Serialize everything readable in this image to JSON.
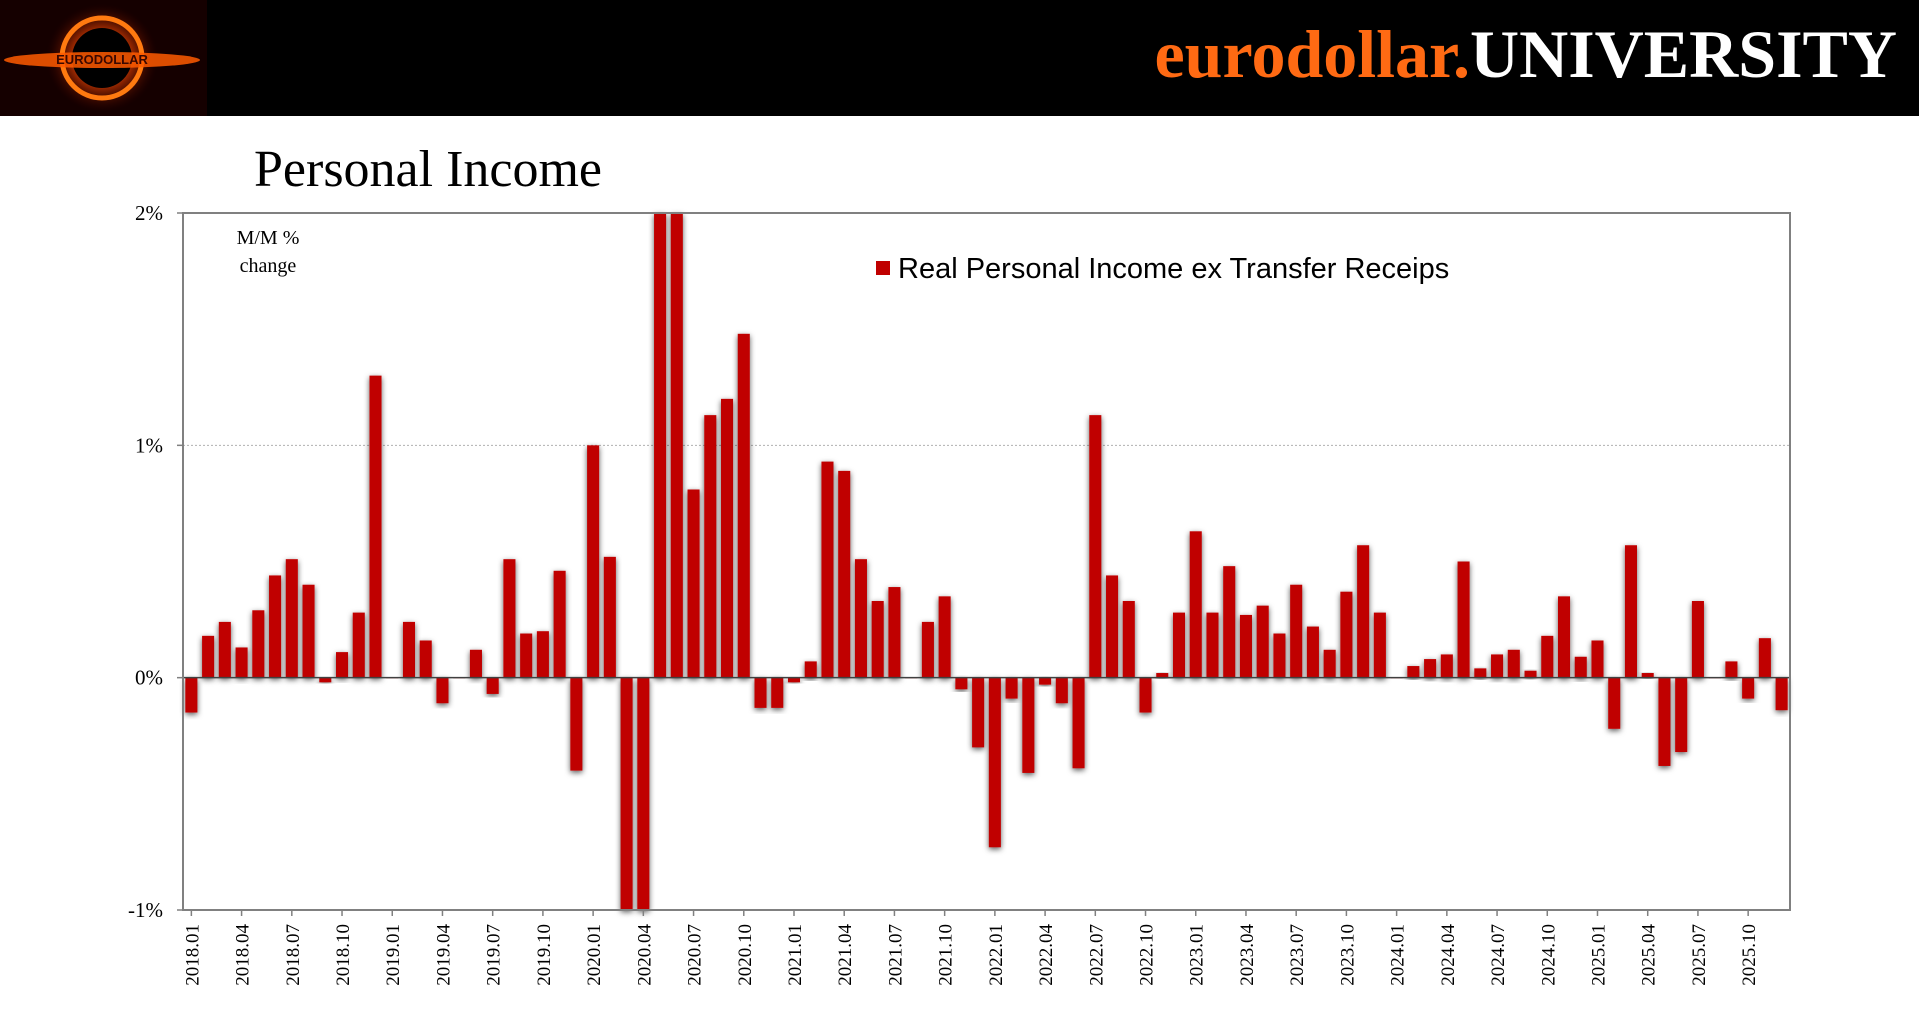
{
  "header": {
    "brand_part1": "eurodollar.",
    "brand_part2": "UNIVERSITY",
    "logo_text": "EURODOLLAR",
    "colors": {
      "background": "#000000",
      "brand_orange": "#ff6a13",
      "brand_white": "#ffffff",
      "logo_glow": "#ff5a00"
    }
  },
  "page_title": "Personal Income",
  "chart_data": {
    "type": "bar",
    "title": "Personal Income",
    "ylabel_line1": "M/M %",
    "ylabel_line2": "change",
    "ylim": [
      -1,
      2
    ],
    "yticks": [
      -1,
      0,
      1,
      2
    ],
    "ytick_labels": [
      "-1%",
      "0%",
      "1%",
      "2%"
    ],
    "grid": true,
    "legend_position": "top-center",
    "series": [
      {
        "name": "Real Personal Income ex Transfer Receips",
        "color": "#c00000",
        "values": [
          -0.15,
          0.18,
          0.24,
          0.13,
          0.29,
          0.44,
          0.51,
          0.4,
          -0.02,
          0.11,
          0.28,
          1.3,
          0.0,
          0.24,
          0.16,
          -0.11,
          0.0,
          0.12,
          -0.07,
          0.51,
          0.19,
          0.2,
          0.46,
          -0.4,
          1.0,
          0.52,
          -1.0,
          -1.0,
          2.0,
          2.0,
          0.81,
          1.13,
          1.2,
          1.48,
          -0.13,
          -0.13,
          -0.02,
          0.07,
          0.93,
          0.89,
          0.51,
          0.33,
          0.39,
          0.0,
          0.24,
          0.35,
          -0.05,
          -0.3,
          -0.73,
          -0.09,
          -0.41,
          -0.03,
          -0.11,
          -0.39,
          1.13,
          0.44,
          0.33,
          -0.15,
          0.02,
          0.28,
          0.63,
          0.28,
          0.48,
          0.27,
          0.31,
          0.19,
          0.4,
          0.22,
          0.12,
          0.37,
          0.57,
          0.28,
          0.0,
          0.05,
          0.08,
          0.1,
          0.5,
          0.04,
          0.1,
          0.12,
          0.03,
          0.18,
          0.35,
          0.09,
          0.16,
          -0.22,
          0.57,
          0.02,
          -0.38,
          -0.32,
          0.33,
          0.0,
          0.07,
          -0.09,
          0.17,
          -0.14
        ]
      }
    ],
    "start_year": 2018,
    "start_month": 1,
    "tick_every": 3,
    "x_tick_labels": [
      "2018.01",
      "2018.04",
      "2018.07",
      "2018.10",
      "2019.01",
      "2019.04",
      "2019.07",
      "2019.10",
      "2020.01",
      "2020.04",
      "2020.07",
      "2020.10",
      "2021.01",
      "2021.04",
      "2021.07",
      "2021.10",
      "2022.01",
      "2022.04",
      "2022.07",
      "2022.10",
      "2023.01",
      "2023.04",
      "2023.07",
      "2023.10",
      "2024.01",
      "2024.04",
      "2024.07",
      "2024.10",
      "2025.01",
      "2025.04",
      "2025.07",
      "2025.10"
    ]
  }
}
